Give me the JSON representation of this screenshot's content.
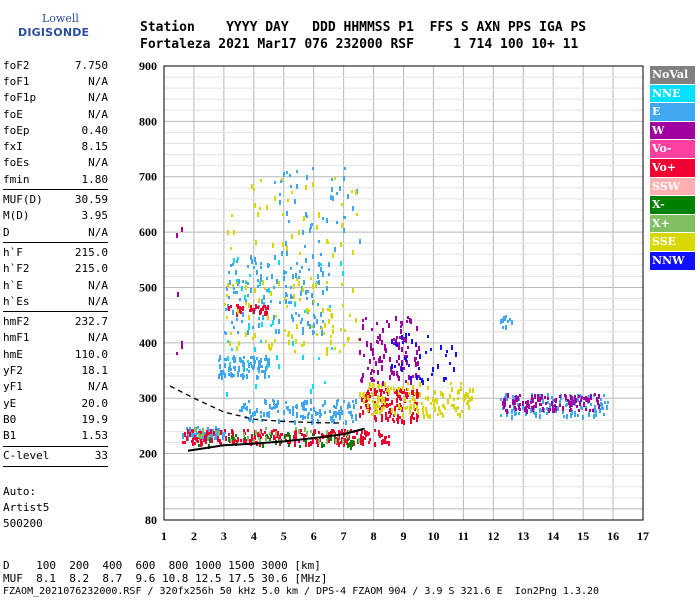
{
  "logo": {
    "lowell": "Lowell",
    "digisonde": "DIGISONDE"
  },
  "header": {
    "line1": "Station    YYYY DAY   DDD HHMMSS P1  FFS S AXN PPS IGA PS",
    "line2": "Fortaleza 2021 Mar17 076 232000 RSF     1 714 100 10+ 11"
  },
  "params": {
    "group1": [
      {
        "label": "foF2",
        "value": "7.750"
      },
      {
        "label": "foF1",
        "value": "N/A"
      },
      {
        "label": "foF1p",
        "value": "N/A"
      },
      {
        "label": "foE",
        "value": "N/A"
      },
      {
        "label": "foEp",
        "value": "0.40"
      },
      {
        "label": "fxI",
        "value": "8.15"
      },
      {
        "label": "foEs",
        "value": "N/A"
      },
      {
        "label": "fmin",
        "value": "1.80"
      }
    ],
    "group2": [
      {
        "label": "MUF(D)",
        "value": "30.59"
      },
      {
        "label": "M(D)",
        "value": "3.95"
      },
      {
        "label": "D",
        "value": "N/A"
      }
    ],
    "group3": [
      {
        "label": "h`F",
        "value": "215.0"
      },
      {
        "label": "h`F2",
        "value": "215.0"
      },
      {
        "label": "h`E",
        "value": "N/A"
      },
      {
        "label": "h`Es",
        "value": "N/A"
      }
    ],
    "group4": [
      {
        "label": "hmF2",
        "value": "232.7"
      },
      {
        "label": "hmF1",
        "value": "N/A"
      },
      {
        "label": "hmE",
        "value": "110.0"
      },
      {
        "label": "yF2",
        "value": "18.1"
      },
      {
        "label": "yF1",
        "value": "N/A"
      },
      {
        "label": "yE",
        "value": "20.0"
      },
      {
        "label": "B0",
        "value": "19.9"
      },
      {
        "label": "B1",
        "value": "1.53"
      }
    ],
    "clevel": {
      "label": "C-level",
      "value": "33"
    }
  },
  "auto": {
    "line1": "Auto:",
    "line2": "Artist5",
    "line3": "500200"
  },
  "bottom": {
    "d_line": "D    100  200  400  600  800 1000 1500 3000 [km]",
    "muf_line": "MUF  8.1  8.2  8.7  9.6 10.8 12.5 17.5 30.6 [MHz]",
    "file_line": "FZAOM_2021076232000.RSF / 320fx256h 50 kHz 5.0 km / DPS-4 FZAOM 904 / 3.9 S 321.6 E  Ion2Png 1.3.20"
  },
  "legend": [
    {
      "label": "NoVal",
      "color": "#808080"
    },
    {
      "label": "NNE",
      "color": "#00e0ff"
    },
    {
      "label": "E",
      "color": "#40a8f0"
    },
    {
      "label": "W",
      "color": "#a000a0"
    },
    {
      "label": "Vo-",
      "color": "#ff40a0"
    },
    {
      "label": "Vo+",
      "color": "#f00030"
    },
    {
      "label": "SSW",
      "color": "#ffb0b0"
    },
    {
      "label": "X-",
      "color": "#008000"
    },
    {
      "label": "X+",
      "color": "#80c060"
    },
    {
      "label": "SSE",
      "color": "#d8d800"
    },
    {
      "label": "NNW",
      "color": "#1010ff"
    }
  ],
  "chart_data": {
    "type": "scatter",
    "xlabel": "",
    "ylabel": "",
    "xlim": [
      1,
      17
    ],
    "ylim": [
      80,
      900
    ],
    "x_ticks": [
      1,
      2,
      3,
      4,
      5,
      6,
      7,
      8,
      9,
      10,
      11,
      12,
      13,
      14,
      15,
      16,
      17
    ],
    "y_ticks": [
      80,
      200,
      300,
      400,
      500,
      600,
      700,
      800,
      900
    ],
    "grid": true,
    "series": [
      {
        "name": "E",
        "color": "#40a8f0",
        "clusters": [
          {
            "x": [
              1.6,
              3.0
            ],
            "y": [
              230,
              250
            ],
            "n": 70
          },
          {
            "x": [
              2.8,
              4.5
            ],
            "y": [
              340,
              380
            ],
            "n": 90
          },
          {
            "x": [
              3.0,
              6.5
            ],
            "y": [
              420,
              560
            ],
            "n": 140
          },
          {
            "x": [
              3.5,
              7.5
            ],
            "y": [
              260,
              300
            ],
            "n": 120
          },
          {
            "x": [
              4.5,
              7.5
            ],
            "y": [
              560,
              720
            ],
            "n": 50
          },
          {
            "x": [
              12.2,
              12.6
            ],
            "y": [
              430,
              450
            ],
            "n": 12
          },
          {
            "x": [
              12.2,
              15.8
            ],
            "y": [
              270,
              310
            ],
            "n": 110
          }
        ]
      },
      {
        "name": "Vo+",
        "color": "#f00030",
        "clusters": [
          {
            "x": [
              1.6,
              8.5
            ],
            "y": [
              220,
              245
            ],
            "n": 220
          },
          {
            "x": [
              3.0,
              4.5
            ],
            "y": [
              455,
              470
            ],
            "n": 30
          },
          {
            "x": [
              7.5,
              9.5
            ],
            "y": [
              260,
              320
            ],
            "n": 120
          }
        ]
      },
      {
        "name": "SSE",
        "color": "#d8d800",
        "clusters": [
          {
            "x": [
              3.0,
              7.5
            ],
            "y": [
              380,
              520
            ],
            "n": 90
          },
          {
            "x": [
              7.5,
              11.3
            ],
            "y": [
              270,
              330
            ],
            "n": 140
          },
          {
            "x": [
              3.0,
              7.5
            ],
            "y": [
              560,
              700
            ],
            "n": 40
          }
        ]
      },
      {
        "name": "W",
        "color": "#a000a0",
        "clusters": [
          {
            "x": [
              7.5,
              9.5
            ],
            "y": [
              330,
              450
            ],
            "n": 110
          },
          {
            "x": [
              12.3,
              15.5
            ],
            "y": [
              280,
              310
            ],
            "n": 110
          },
          {
            "x": [
              1.4,
              1.6
            ],
            "y": [
              330,
              690
            ],
            "n": 6
          }
        ]
      },
      {
        "name": "NNW",
        "color": "#1010ff",
        "clusters": [
          {
            "x": [
              8.5,
              10.8
            ],
            "y": [
              330,
              420
            ],
            "n": 40
          }
        ]
      },
      {
        "name": "X-",
        "color": "#008000",
        "clusters": [
          {
            "x": [
              2.0,
              7.5
            ],
            "y": [
              215,
              240
            ],
            "n": 40
          }
        ]
      },
      {
        "name": "X+",
        "color": "#80c060",
        "clusters": [
          {
            "x": [
              2.0,
              7.5
            ],
            "y": [
              225,
              250
            ],
            "n": 40
          }
        ]
      },
      {
        "name": "NNE",
        "color": "#00e0ff",
        "clusters": [
          {
            "x": [
              3.0,
              7.0
            ],
            "y": [
              300,
              560
            ],
            "n": 40
          }
        ]
      }
    ],
    "profile_curve": {
      "x": [
        1.8,
        3,
        4,
        5,
        6,
        7,
        7.7
      ],
      "y": [
        205,
        215,
        218,
        222,
        228,
        235,
        245
      ]
    },
    "dashed_curve": {
      "x": [
        1.2,
        2,
        3,
        4,
        5,
        6,
        7
      ],
      "y": [
        322,
        300,
        275,
        262,
        258,
        256,
        255
      ]
    }
  }
}
